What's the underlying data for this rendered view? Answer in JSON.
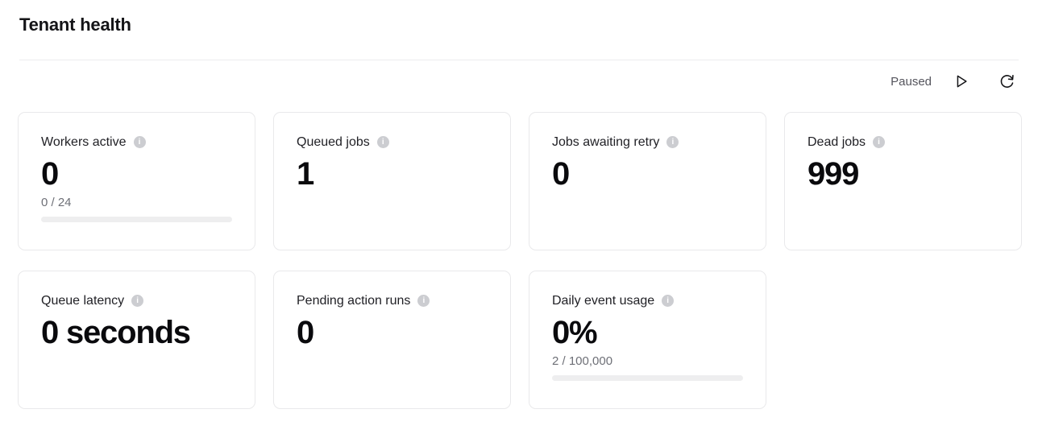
{
  "page": {
    "title": "Tenant health"
  },
  "toolbar": {
    "status": "Paused",
    "play_icon": "play-outline-triangle",
    "refresh_icon": "refresh-circular-arrow"
  },
  "colors": {
    "card_border": "#e9e9eb",
    "muted_text": "#6e7077",
    "progress_track": "#eeeeef",
    "info_icon_bg": "#cccdd1",
    "value_text": "#0a0a0d"
  },
  "info_icon_glyph": "i",
  "cards": [
    {
      "label": "Workers active",
      "value": "0",
      "sub": "0 / 24",
      "progress_percent": 0
    },
    {
      "label": "Queued jobs",
      "value": "1"
    },
    {
      "label": "Jobs awaiting retry",
      "value": "0"
    },
    {
      "label": "Dead jobs",
      "value": "999"
    },
    {
      "label": "Queue latency",
      "value": "0 seconds"
    },
    {
      "label": "Pending action runs",
      "value": "0"
    },
    {
      "label": "Daily event usage",
      "value": "0%",
      "sub": "2 / 100,000",
      "progress_percent": 0
    }
  ]
}
